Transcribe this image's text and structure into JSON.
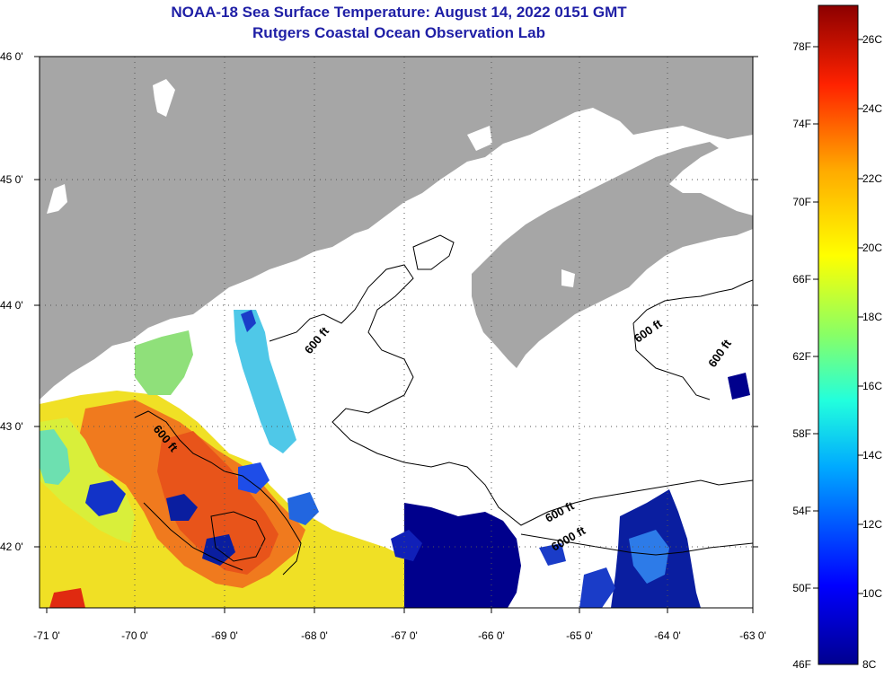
{
  "header": {
    "title": "NOAA-18 Sea Surface Temperature:  August 14, 2022 0151 GMT",
    "subtitle": "Rutgers Coastal Ocean Observation Lab"
  },
  "map": {
    "lat_labels": [
      "46 0'",
      "45 0'",
      "44 0'",
      "43 0'",
      "42 0'"
    ],
    "lon_labels": [
      "-71 0'",
      "-70 0'",
      "-69 0'",
      "-68 0'",
      "-67 0'",
      "-66 0'",
      "-65 0'",
      "-64 0'",
      "-63 0'"
    ],
    "contour_labels": [
      "600 ft",
      "600 ft",
      "600 ft",
      "600 ft",
      "600 ft",
      "6000 ft"
    ],
    "colors": {
      "land": "#a6a6a6",
      "cloud": "#ffffff",
      "ocean_warm": "#f07a1e",
      "ocean_cold": "#00008c"
    }
  },
  "colorbar": {
    "fahrenheit_labels": [
      "78F",
      "74F",
      "70F",
      "66F",
      "62F",
      "58F",
      "54F",
      "50F",
      "46F"
    ],
    "celsius_labels": [
      "26C",
      "24C",
      "22C",
      "20C",
      "18C",
      "16C",
      "14C",
      "12C",
      "10C",
      "8C"
    ]
  }
}
